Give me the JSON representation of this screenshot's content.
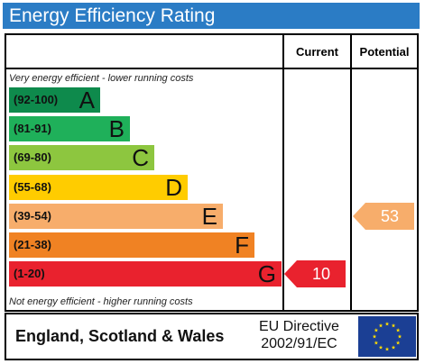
{
  "title": "Energy Efficiency Rating",
  "columns": {
    "current": "Current",
    "potential": "Potential"
  },
  "notes": {
    "top": "Very energy efficient - lower running costs",
    "bottom": "Not energy efficient - higher running costs"
  },
  "bands": [
    {
      "range": "(92-100)",
      "letter": "A",
      "color": "#0e8a4c"
    },
    {
      "range": "(81-91)",
      "letter": "B",
      "color": "#1fb05a"
    },
    {
      "range": "(69-80)",
      "letter": "C",
      "color": "#8dc63f"
    },
    {
      "range": "(55-68)",
      "letter": "D",
      "color": "#ffcc00"
    },
    {
      "range": "(39-54)",
      "letter": "E",
      "color": "#f7ad6b"
    },
    {
      "range": "(21-38)",
      "letter": "F",
      "color": "#f08223"
    },
    {
      "range": "(1-20)",
      "letter": "G",
      "color": "#e9222e"
    }
  ],
  "current": {
    "value": "10",
    "band": "G",
    "color": "#e9222e"
  },
  "potential": {
    "value": "53",
    "band": "E",
    "color": "#f7ad6b"
  },
  "footer": {
    "country": "England, Scotland & Wales",
    "directive_line1": "EU Directive",
    "directive_line2": "2002/91/EC",
    "flag_color": "#1b3f94",
    "star_color": "#ffdd00"
  }
}
